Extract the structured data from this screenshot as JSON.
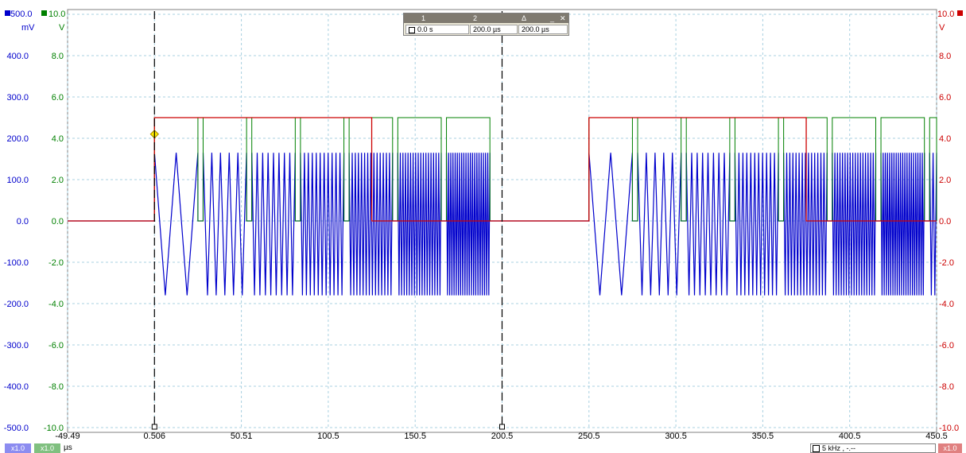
{
  "chart_data": {
    "type": "line",
    "x_unit": "µs",
    "x_ticks": [
      "-49.49",
      "0.506",
      "50.51",
      "100.5",
      "150.5",
      "200.5",
      "250.5",
      "300.5",
      "350.5",
      "400.5",
      "450.5"
    ],
    "xlim": [
      -49.49,
      450.5
    ],
    "axes": [
      {
        "channel": "A",
        "unit": "mV",
        "side": "left",
        "color": "#0000cc",
        "top_label": "500.0",
        "ticks": [
          "400.0",
          "300.0",
          "200.0",
          "100.0",
          "0.0",
          "-100.0",
          "-200.0",
          "-300.0",
          "-400.0",
          "-500.0"
        ],
        "ylim": [
          -500,
          500
        ]
      },
      {
        "channel": "B",
        "unit": "V",
        "side": "left",
        "color": "#008000",
        "top_label": "10.0",
        "ticks": [
          "8.0",
          "6.0",
          "4.0",
          "2.0",
          "0.0",
          "-2.0",
          "-4.0",
          "-6.0",
          "-8.0",
          "-10.0"
        ],
        "ylim": [
          -10,
          10
        ]
      },
      {
        "channel": "C",
        "unit": "V",
        "side": "right",
        "color": "#cc0000",
        "top_label": "10.0",
        "ticks": [
          "8.0",
          "6.0",
          "4.0",
          "2.0",
          "0.0",
          "-2.0",
          "-4.0",
          "-6.0",
          "-8.0",
          "-10.0"
        ],
        "ylim": [
          -10,
          10
        ]
      }
    ],
    "series": [
      {
        "channel": "A",
        "color": "#0000cc",
        "shape": "bursts",
        "amplitude_mV": [
          -180,
          165
        ],
        "bursts": [
          [
            0.5,
            25.5
          ],
          [
            28.5,
            53.5
          ],
          [
            56.5,
            81.5
          ],
          [
            84.5,
            109.5
          ],
          [
            112.5,
            137.5
          ],
          [
            140.5,
            165.5
          ],
          [
            168.5,
            193.5
          ],
          [
            250.5,
            275.5
          ],
          [
            278.5,
            303.5
          ],
          [
            306.5,
            331.5
          ],
          [
            334.5,
            359.5
          ],
          [
            362.5,
            387.5
          ],
          [
            390.5,
            415.5
          ],
          [
            418.5,
            443.5
          ],
          [
            446.5,
            450.5
          ]
        ]
      },
      {
        "channel": "B",
        "color": "#008000",
        "shape": "pulses",
        "high_V": 5,
        "low_V": 0,
        "pulses": [
          [
            0.5,
            25.5
          ],
          [
            28.5,
            53.5
          ],
          [
            56.5,
            81.5
          ],
          [
            84.5,
            109.5
          ],
          [
            112.5,
            137.5
          ],
          [
            140.5,
            165.5
          ],
          [
            168.5,
            193.5
          ],
          [
            250.5,
            275.5
          ],
          [
            278.5,
            303.5
          ],
          [
            306.5,
            331.5
          ],
          [
            334.5,
            359.5
          ],
          [
            362.5,
            387.5
          ],
          [
            390.5,
            415.5
          ],
          [
            418.5,
            443.5
          ],
          [
            446.5,
            450.5
          ]
        ]
      },
      {
        "channel": "C",
        "color": "#cc0000",
        "shape": "pulses",
        "high_V": 5,
        "low_V": 0,
        "pulses": [
          [
            0.5,
            125.5
          ],
          [
            250.5,
            375.5
          ]
        ]
      }
    ],
    "cursors": [
      0.506,
      200.5
    ],
    "trigger_marker": {
      "x": 0.506,
      "y_V": 4.2
    },
    "grid": true
  },
  "cursor_table": {
    "headers": [
      "1",
      "2",
      "Δ"
    ],
    "values": [
      "0.0 s",
      "200.0 µs",
      "200.0 µs"
    ]
  },
  "scale_badges": {
    "a": "x1.0",
    "b": "x1.0",
    "c": "x1.0"
  },
  "status_text": "5 kHz , -.--",
  "x_unit_label": "µs"
}
